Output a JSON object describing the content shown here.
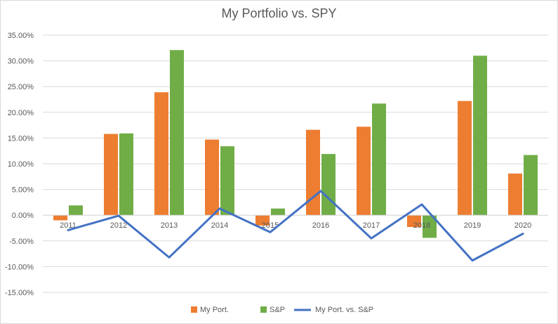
{
  "chart_data": {
    "type": "bar",
    "title": "My Portfolio vs. SPY",
    "categories": [
      "2011",
      "2012",
      "2013",
      "2014",
      "2015",
      "2016",
      "2017",
      "2018",
      "2019",
      "2020"
    ],
    "ylim": [
      -15,
      35
    ],
    "yticks": [
      35,
      30,
      25,
      20,
      15,
      10,
      5,
      0,
      -5,
      -10,
      -15
    ],
    "ytick_labels": [
      "35.00%",
      "30.00%",
      "25.00%",
      "20.00%",
      "15.00%",
      "10.00%",
      "5.00%",
      "0.00%",
      "-5.00%",
      "-10.00%",
      "-15.00%"
    ],
    "grid": true,
    "legend_position": "bottom",
    "series": [
      {
        "name": "My Port.",
        "type": "bar",
        "color": "#ED7D31",
        "values": [
          -1.0,
          15.8,
          23.9,
          14.7,
          -2.0,
          16.6,
          17.2,
          -2.3,
          22.2,
          8.1
        ]
      },
      {
        "name": "S&P",
        "type": "bar",
        "color": "#70AD47",
        "values": [
          1.9,
          15.9,
          32.1,
          13.4,
          1.3,
          11.9,
          21.7,
          -4.4,
          31.0,
          11.7
        ]
      },
      {
        "name": "My Port. vs. S&P",
        "type": "line",
        "color": "#4472C4",
        "values": [
          -2.9,
          -0.1,
          -8.2,
          1.3,
          -3.3,
          4.7,
          -4.5,
          2.1,
          -8.8,
          -3.6
        ]
      }
    ]
  }
}
